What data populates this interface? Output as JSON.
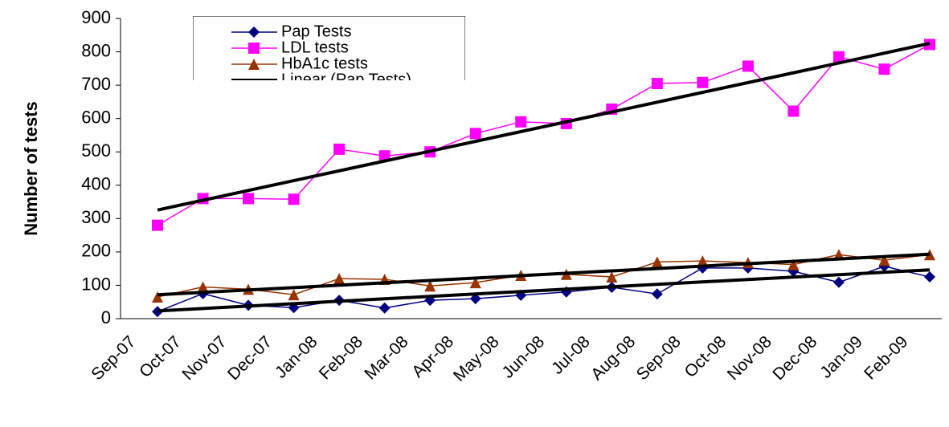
{
  "chart_data": {
    "type": "line",
    "ylabel": "Number of tests",
    "categories": [
      "Sep-07",
      "Oct-07",
      "Nov-07",
      "Dec-07",
      "Jan-08",
      "Feb-08",
      "Mar-08",
      "Apr-08",
      "May-08",
      "Jun-08",
      "Jul-08",
      "Aug-08",
      "Sep-08",
      "Oct-08",
      "Nov-08",
      "Dec-08",
      "Jan-09",
      "Feb-09"
    ],
    "series": [
      {
        "name": "Pap Tests",
        "color": "#000080",
        "marker": "diamond",
        "trendline_name": "Linear (Pap Tests)",
        "values": [
          21,
          75,
          40,
          33,
          55,
          32,
          55,
          60,
          70,
          80,
          94,
          74,
          152,
          152,
          142,
          109,
          157,
          125
        ]
      },
      {
        "name": "LDL tests",
        "color": "#ff00ff",
        "marker": "square",
        "trendline": true,
        "values": [
          280,
          360,
          360,
          358,
          508,
          488,
          500,
          555,
          590,
          585,
          628,
          705,
          708,
          757,
          622,
          785,
          748,
          822
        ]
      },
      {
        "name": "HbA1c tests",
        "color": "#993300",
        "marker": "triangle",
        "trendline": true,
        "values": [
          65,
          95,
          88,
          72,
          120,
          118,
          98,
          108,
          130,
          133,
          125,
          170,
          173,
          168,
          162,
          192,
          175,
          192
        ]
      }
    ],
    "trendline_color": "#000000",
    "ylim": [
      0,
      900
    ],
    "yticks": [
      0,
      100,
      200,
      300,
      400,
      500,
      600,
      700,
      800,
      900
    ]
  }
}
